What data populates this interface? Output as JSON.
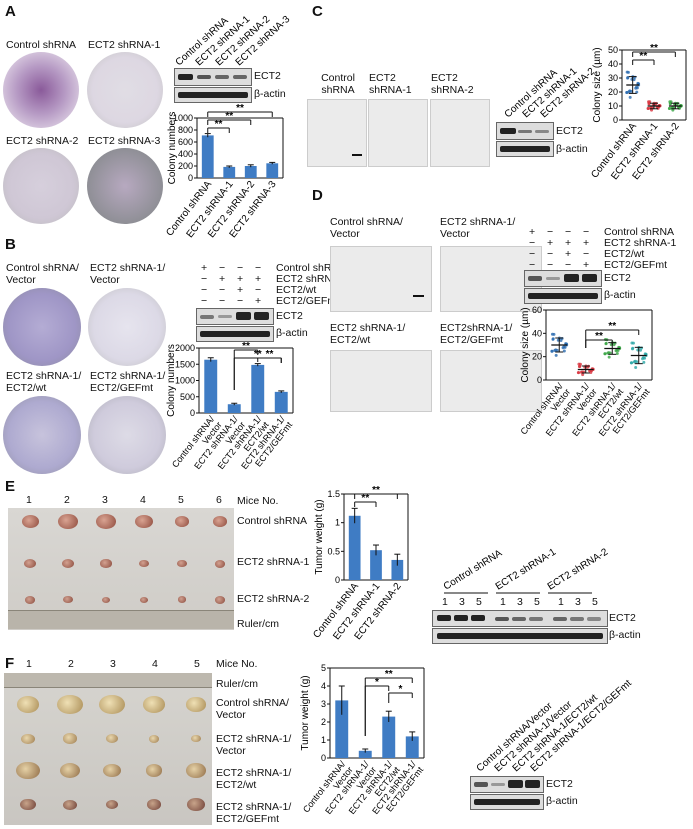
{
  "panels": {
    "A": {
      "letter": "A",
      "dishes": [
        "Control shRNA",
        "ECT2 shRNA-1",
        "ECT2 shRNA-2",
        "ECT2 shRNA-3"
      ],
      "blot_lanes": [
        "Control shRNA",
        "ECT2 shRNA-1",
        "ECT2 shRNA-2",
        "ECT2 shRNA-3"
      ],
      "blot_proteins": [
        "ECT2",
        "β-actin"
      ],
      "sig": [
        "**",
        "**",
        "**"
      ]
    },
    "B": {
      "letter": "B",
      "dishes": [
        "Control shRNA/ Vector",
        "ECT2 shRNA-1/ Vector",
        "ECT2 shRNA-1/ ECT2/wt",
        "ECT2 shRNA-1/ ECT2/GEFmt"
      ],
      "matrix_rows": [
        "Control shRNA",
        "ECT2 shRNA-1",
        "ECT2/wt",
        "ECT2/GEFmt"
      ],
      "matrix": [
        [
          "+",
          "−",
          "−",
          "−"
        ],
        [
          "−",
          "+",
          "+",
          "+"
        ],
        [
          "−",
          "−",
          "+",
          "−"
        ],
        [
          "−",
          "−",
          "−",
          "+"
        ]
      ],
      "blot_proteins": [
        "ECT2",
        "β-actin"
      ],
      "sig": [
        "**",
        "**",
        "**"
      ]
    },
    "C": {
      "letter": "C",
      "images": [
        "Control shRNA",
        "ECT2 shRNA-1",
        "ECT2 shRNA-2"
      ],
      "blot_lanes": [
        "Control shRNA",
        "ECT2 shRNA-1",
        "ECT2 shRNA-2"
      ],
      "blot_proteins": [
        "ECT2",
        "β-actin"
      ],
      "sig": [
        "**",
        "**"
      ]
    },
    "D": {
      "letter": "D",
      "images": [
        "Control shRNA/ Vector",
        "ECT2 shRNA-1/ Vector",
        "ECT2 shRNA-1/ ECT2/wt",
        "ECT2shRNA-1/ ECT2/GEFmt"
      ],
      "matrix_rows": [
        "Control shRNA",
        "ECT2 shRNA-1",
        "ECT2/wt",
        "ECT2/GEFmt"
      ],
      "matrix": [
        [
          "+",
          "−",
          "−",
          "−"
        ],
        [
          "−",
          "+",
          "+",
          "+"
        ],
        [
          "−",
          "−",
          "+",
          "−"
        ],
        [
          "−",
          "−",
          "−",
          "+"
        ]
      ],
      "blot_proteins": [
        "ECT2",
        "β-actin"
      ],
      "sig": [
        "**",
        "**"
      ]
    },
    "E": {
      "letter": "E",
      "mice_label": "Mice No.",
      "mice": [
        "1",
        "2",
        "3",
        "4",
        "5",
        "6"
      ],
      "rows": [
        "Control shRNA",
        "ECT2 shRNA-1",
        "ECT2 shRNA-2"
      ],
      "ruler": "Ruler/cm",
      "blot_groups": [
        "Control shRNA",
        "ECT2 shRNA-1",
        "ECT2 shRNA-2"
      ],
      "blot_mice": [
        "1",
        "3",
        "5"
      ],
      "blot_proteins": [
        "ECT2",
        "β-actin"
      ],
      "sig": [
        "**",
        "**"
      ]
    },
    "F": {
      "letter": "F",
      "mice_label": "Mice No.",
      "mice": [
        "1",
        "2",
        "3",
        "4",
        "5"
      ],
      "ruler": "Ruler/cm",
      "rows": [
        "Control shRNA/ Vector",
        "ECT2 shRNA-1/ Vector",
        "ECT2 shRNA-1/ ECT2/wt",
        "ECT2 shRNA-1/ ECT2/GEFmt"
      ],
      "blot_lanes": [
        "Control shRNA/Vector",
        "ECT2 shRNA-1/Vector",
        "ECT2 shRNA-1/ECT2/wt",
        "ECT2 shRNA-1/ECT2/GEFmt"
      ],
      "blot_proteins": [
        "ECT2",
        "β-actin"
      ],
      "sig": [
        "*",
        "**",
        "*"
      ]
    }
  },
  "chart_data": [
    {
      "panel": "A",
      "type": "bar",
      "categories": [
        "Control shRNA",
        "ECT2 shRNA-1",
        "ECT2 shRNA-2",
        "ECT2 shRNA-3"
      ],
      "values": [
        710,
        185,
        200,
        245
      ],
      "errors": [
        30,
        15,
        20,
        15
      ],
      "ylabel": "Colony numbers",
      "ylim": [
        0,
        1000
      ],
      "yticks": [
        0,
        200,
        400,
        600,
        800,
        1000
      ],
      "color": "#3f7cc4"
    },
    {
      "panel": "B",
      "type": "bar",
      "categories": [
        "Control shRNA/ Vector",
        "ECT2 shRNA-1/ Vector",
        "ECT2 shRNA-1/ ECT2/wt",
        "ECT2 shRNA-1/ ECT2/GEFmt"
      ],
      "values": [
        1640,
        270,
        1480,
        650
      ],
      "errors": [
        60,
        30,
        40,
        30
      ],
      "ylabel": "Colony numbers",
      "ylim": [
        0,
        2000
      ],
      "yticks": [
        0,
        500,
        1000,
        1500,
        2000
      ],
      "color": "#3f7cc4"
    },
    {
      "panel": "C",
      "type": "scatter",
      "categories": [
        "Control shRNA",
        "ECT2 shRNA-1",
        "ECT2 shRNA-2"
      ],
      "means": [
        25,
        10,
        10
      ],
      "sds": [
        6,
        2,
        2
      ],
      "ylabel": "Colony size (µm)",
      "ylim": [
        0,
        50
      ],
      "yticks": [
        0,
        10,
        20,
        30,
        40,
        50
      ],
      "colors": [
        "#2b6cb0",
        "#d8343f",
        "#3aa545"
      ]
    },
    {
      "panel": "D",
      "type": "scatter",
      "categories": [
        "Control shRNA/ Vector",
        "ECT2 shRNA-1/ Vector",
        "ECT2 shRNA-1/ ECT2/wt",
        "ECT2 shRNA-1/ ECT2/GEFmt"
      ],
      "means": [
        30,
        9,
        27,
        21
      ],
      "sds": [
        6,
        3,
        5,
        7
      ],
      "ylabel": "Colony size (µm)",
      "ylim": [
        0,
        60
      ],
      "yticks": [
        0,
        20,
        40,
        60
      ],
      "colors": [
        "#2b6cb0",
        "#d8343f",
        "#3aa545",
        "#2aa6a6"
      ]
    },
    {
      "panel": "E",
      "type": "bar",
      "categories": [
        "Control shRNA",
        "ECT2 shRNA-1",
        "ECT2 shRNA-2"
      ],
      "values": [
        1.12,
        0.52,
        0.35
      ],
      "errors": [
        0.13,
        0.09,
        0.1
      ],
      "ylabel": "Tumor weight (g)",
      "ylim": [
        0,
        1.5
      ],
      "yticks": [
        0.0,
        0.5,
        1.0,
        1.5
      ],
      "color": "#3f7cc4"
    },
    {
      "panel": "F",
      "type": "bar",
      "categories": [
        "Control shRNA/ Vector",
        "ECT2 shRNA-1/ Vector",
        "ECT2 shRNA-1/ ECT2/wt",
        "ECT2 shRNA-1/ ECT2/GEFmt"
      ],
      "values": [
        3.2,
        0.4,
        2.3,
        1.2
      ],
      "errors": [
        0.8,
        0.1,
        0.3,
        0.25
      ],
      "ylabel": "Tumor weight (g)",
      "ylim": [
        0,
        5
      ],
      "yticks": [
        0,
        1,
        2,
        3,
        4,
        5
      ],
      "color": "#3f7cc4"
    }
  ]
}
